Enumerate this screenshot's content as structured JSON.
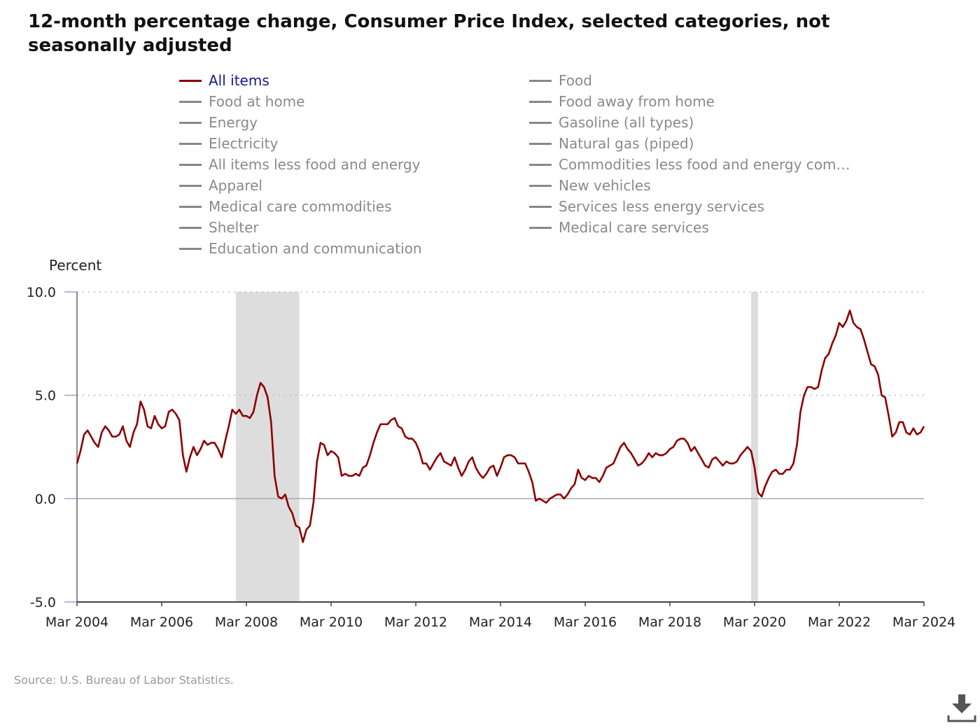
{
  "title": "12-month percentage change, Consumer Price Index, selected categories, not seasonally adjusted",
  "legend": [
    {
      "label": "All items",
      "color": "#8b0000",
      "active": true
    },
    {
      "label": "Food",
      "color": "#888888",
      "active": false
    },
    {
      "label": "Food at home",
      "color": "#888888",
      "active": false
    },
    {
      "label": "Food away from home",
      "color": "#888888",
      "active": false
    },
    {
      "label": "Energy",
      "color": "#888888",
      "active": false
    },
    {
      "label": "Gasoline (all types)",
      "color": "#888888",
      "active": false
    },
    {
      "label": "Electricity",
      "color": "#888888",
      "active": false
    },
    {
      "label": "Natural gas (piped)",
      "color": "#888888",
      "active": false
    },
    {
      "label": "All items less food and energy",
      "color": "#888888",
      "active": false
    },
    {
      "label": "Commodities less food and energy com…",
      "color": "#888888",
      "active": false
    },
    {
      "label": "Apparel",
      "color": "#888888",
      "active": false
    },
    {
      "label": "New vehicles",
      "color": "#888888",
      "active": false
    },
    {
      "label": "Medical care commodities",
      "color": "#888888",
      "active": false
    },
    {
      "label": "Services less energy services",
      "color": "#888888",
      "active": false
    },
    {
      "label": "Shelter",
      "color": "#888888",
      "active": false
    },
    {
      "label": "Medical care services",
      "color": "#888888",
      "active": false
    },
    {
      "label": "Education and communication",
      "color": "#888888",
      "active": false
    }
  ],
  "source": "Source: U.S. Bureau of Labor Statistics.",
  "download_icon": "download-icon",
  "chart_data": {
    "type": "line",
    "title": "12-month percentage change, Consumer Price Index, selected categories, not seasonally adjusted",
    "ylabel": "Percent",
    "xlabel": "",
    "x_start": "Mar 2004",
    "frequency": "monthly",
    "x_ticks": [
      "Mar 2004",
      "Mar 2006",
      "Mar 2008",
      "Mar 2010",
      "Mar 2012",
      "Mar 2014",
      "Mar 2016",
      "Mar 2018",
      "Mar 2020",
      "Mar 2022",
      "Mar 2024"
    ],
    "y_ticks": [
      10.0,
      5.0,
      0.0,
      -5.0
    ],
    "ylim": [
      -5,
      10
    ],
    "xlim": [
      "Mar 2004",
      "Mar 2024"
    ],
    "grid": "dotted horizontal at 10.0 and 5.0, solid at 0.0",
    "recession_shading": [
      {
        "start": "Dec 2007",
        "end": "Jun 2009",
        "color": "#dddddd"
      },
      {
        "start": "Feb 2020",
        "end": "Apr 2020",
        "color": "#dddddd"
      }
    ],
    "series": [
      {
        "name": "All items",
        "color": "#8b0000",
        "values": [
          1.7,
          2.3,
          3.1,
          3.3,
          3.0,
          2.7,
          2.5,
          3.2,
          3.5,
          3.3,
          3.0,
          3.0,
          3.1,
          3.5,
          2.8,
          2.5,
          3.2,
          3.6,
          4.7,
          4.3,
          3.5,
          3.4,
          4.0,
          3.6,
          3.4,
          3.5,
          4.2,
          4.3,
          4.1,
          3.8,
          2.1,
          1.3,
          2.0,
          2.5,
          2.1,
          2.4,
          2.8,
          2.6,
          2.7,
          2.7,
          2.4,
          2.0,
          2.8,
          3.5,
          4.3,
          4.1,
          4.3,
          4.0,
          4.0,
          3.9,
          4.2,
          5.0,
          5.6,
          5.4,
          4.9,
          3.7,
          1.1,
          0.1,
          0.0,
          0.2,
          -0.4,
          -0.7,
          -1.3,
          -1.4,
          -2.1,
          -1.5,
          -1.3,
          -0.2,
          1.8,
          2.7,
          2.6,
          2.1,
          2.3,
          2.2,
          2.0,
          1.1,
          1.2,
          1.1,
          1.1,
          1.2,
          1.1,
          1.5,
          1.6,
          2.1,
          2.7,
          3.2,
          3.6,
          3.6,
          3.6,
          3.8,
          3.9,
          3.5,
          3.4,
          3.0,
          2.9,
          2.9,
          2.7,
          2.3,
          1.7,
          1.7,
          1.4,
          1.7,
          2.0,
          2.2,
          1.8,
          1.7,
          1.6,
          2.0,
          1.5,
          1.1,
          1.4,
          1.8,
          2.0,
          1.5,
          1.2,
          1.0,
          1.2,
          1.5,
          1.6,
          1.1,
          1.5,
          2.0,
          2.1,
          2.1,
          2.0,
          1.7,
          1.7,
          1.7,
          1.3,
          0.8,
          -0.1,
          0.0,
          -0.1,
          -0.2,
          0.0,
          0.1,
          0.2,
          0.2,
          0.0,
          0.2,
          0.5,
          0.7,
          1.4,
          1.0,
          0.9,
          1.1,
          1.0,
          1.0,
          0.8,
          1.1,
          1.5,
          1.6,
          1.7,
          2.1,
          2.5,
          2.7,
          2.4,
          2.2,
          1.9,
          1.6,
          1.7,
          1.9,
          2.2,
          2.0,
          2.2,
          2.1,
          2.1,
          2.2,
          2.4,
          2.5,
          2.8,
          2.9,
          2.9,
          2.7,
          2.3,
          2.5,
          2.2,
          1.9,
          1.6,
          1.5,
          1.9,
          2.0,
          1.8,
          1.6,
          1.8,
          1.7,
          1.7,
          1.8,
          2.1,
          2.3,
          2.5,
          2.3,
          1.5,
          0.3,
          0.1,
          0.6,
          1.0,
          1.3,
          1.4,
          1.2,
          1.2,
          1.4,
          1.4,
          1.7,
          2.6,
          4.2,
          5.0,
          5.4,
          5.4,
          5.3,
          5.4,
          6.2,
          6.8,
          7.0,
          7.5,
          7.9,
          8.5,
          8.3,
          8.6,
          9.1,
          8.5,
          8.3,
          8.2,
          7.7,
          7.1,
          6.5,
          6.4,
          6.0,
          5.0,
          4.9,
          4.0,
          3.0,
          3.2,
          3.7,
          3.7,
          3.2,
          3.1,
          3.4,
          3.1,
          3.2,
          3.5
        ]
      }
    ]
  }
}
